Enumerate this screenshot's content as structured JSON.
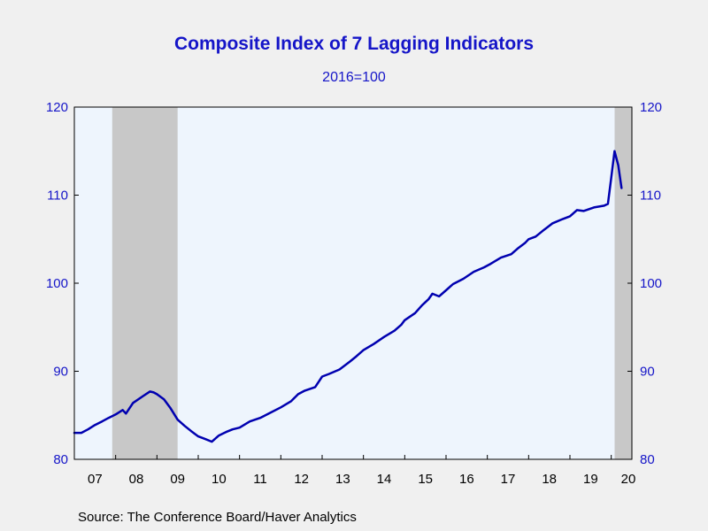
{
  "chart_data": {
    "type": "line",
    "title": "Composite Index of 7 Lagging Indicators",
    "subtitle": "2016=100",
    "source": "Source:  The Conference Board/Haver Analytics",
    "ylim": [
      80,
      120
    ],
    "y_ticks": [
      80,
      90,
      100,
      110,
      120
    ],
    "x_range": [
      2007.0,
      2020.5
    ],
    "x_tick_labels": [
      "07",
      "08",
      "09",
      "10",
      "11",
      "12",
      "13",
      "14",
      "15",
      "16",
      "17",
      "18",
      "19",
      "20"
    ],
    "recessions": [
      [
        2007.917,
        2009.5
      ],
      [
        2020.083,
        2020.5
      ]
    ],
    "grid": false,
    "colors": {
      "line": "#0000b0",
      "plot_bg": "#eef5fd",
      "recession": "#c8c8c8",
      "axis_text": "#1515c8"
    },
    "series": [
      {
        "values": [
          [
            2007.0,
            83.0
          ],
          [
            2007.17,
            83.0
          ],
          [
            2007.33,
            83.4
          ],
          [
            2007.5,
            83.9
          ],
          [
            2007.67,
            84.3
          ],
          [
            2007.83,
            84.7
          ],
          [
            2008.0,
            85.1
          ],
          [
            2008.17,
            85.6
          ],
          [
            2008.25,
            85.2
          ],
          [
            2008.42,
            86.4
          ],
          [
            2008.67,
            87.2
          ],
          [
            2008.83,
            87.7
          ],
          [
            2008.92,
            87.6
          ],
          [
            2009.0,
            87.4
          ],
          [
            2009.17,
            86.8
          ],
          [
            2009.33,
            85.8
          ],
          [
            2009.5,
            84.5
          ],
          [
            2009.67,
            83.8
          ],
          [
            2009.83,
            83.2
          ],
          [
            2010.0,
            82.6
          ],
          [
            2010.17,
            82.3
          ],
          [
            2010.33,
            82.0
          ],
          [
            2010.5,
            82.7
          ],
          [
            2010.67,
            83.1
          ],
          [
            2010.83,
            83.4
          ],
          [
            2011.0,
            83.6
          ],
          [
            2011.25,
            84.3
          ],
          [
            2011.5,
            84.7
          ],
          [
            2011.75,
            85.3
          ],
          [
            2012.0,
            85.9
          ],
          [
            2012.25,
            86.6
          ],
          [
            2012.42,
            87.4
          ],
          [
            2012.58,
            87.8
          ],
          [
            2012.83,
            88.2
          ],
          [
            2013.0,
            89.4
          ],
          [
            2013.17,
            89.7
          ],
          [
            2013.42,
            90.2
          ],
          [
            2013.67,
            91.1
          ],
          [
            2013.83,
            91.7
          ],
          [
            2014.0,
            92.4
          ],
          [
            2014.25,
            93.1
          ],
          [
            2014.5,
            93.9
          ],
          [
            2014.75,
            94.6
          ],
          [
            2014.92,
            95.3
          ],
          [
            2015.0,
            95.8
          ],
          [
            2015.25,
            96.6
          ],
          [
            2015.42,
            97.5
          ],
          [
            2015.58,
            98.2
          ],
          [
            2015.67,
            98.8
          ],
          [
            2015.83,
            98.5
          ],
          [
            2016.0,
            99.2
          ],
          [
            2016.17,
            99.9
          ],
          [
            2016.42,
            100.5
          ],
          [
            2016.67,
            101.3
          ],
          [
            2016.92,
            101.8
          ],
          [
            2017.08,
            102.2
          ],
          [
            2017.33,
            102.9
          ],
          [
            2017.58,
            103.3
          ],
          [
            2017.75,
            104.0
          ],
          [
            2017.92,
            104.6
          ],
          [
            2018.0,
            105.0
          ],
          [
            2018.17,
            105.3
          ],
          [
            2018.33,
            105.9
          ],
          [
            2018.58,
            106.8
          ],
          [
            2018.83,
            107.3
          ],
          [
            2019.0,
            107.6
          ],
          [
            2019.17,
            108.3
          ],
          [
            2019.33,
            108.2
          ],
          [
            2019.58,
            108.6
          ],
          [
            2019.83,
            108.8
          ],
          [
            2019.92,
            109.0
          ],
          [
            2020.0,
            112.0
          ],
          [
            2020.08,
            115.0
          ],
          [
            2020.17,
            113.4
          ],
          [
            2020.25,
            110.8
          ]
        ]
      }
    ]
  }
}
